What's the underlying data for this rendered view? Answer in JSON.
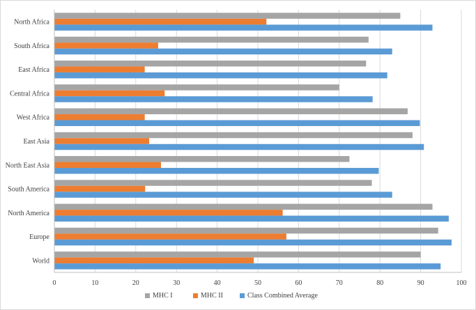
{
  "chart_data": {
    "type": "bar",
    "orientation": "horizontal",
    "categories": [
      "World",
      "Europe",
      "North America",
      "South America",
      "North East Asia",
      "East Asia",
      "West Africa",
      "Central Africa",
      "East Africa",
      "South Africa",
      "North Africa"
    ],
    "series": [
      {
        "name": "MHC I",
        "color": "#a5a5a5",
        "values": [
          90,
          94.3,
          92.9,
          78,
          72.5,
          88,
          86.8,
          70,
          76.6,
          77.2,
          85
        ]
      },
      {
        "name": "MHC II",
        "color": "#ed7d31",
        "values": [
          49,
          57,
          56.1,
          22.3,
          26.2,
          23.3,
          22.2,
          27.1,
          22.2,
          25.5,
          52.1
        ]
      },
      {
        "name": "Class Combined Average",
        "color": "#5b9bd5",
        "values": [
          94.9,
          97.6,
          96.9,
          83,
          79.7,
          90.8,
          89.8,
          78.2,
          81.8,
          83,
          92.9
        ]
      }
    ],
    "xlim": [
      0,
      100
    ],
    "xticks": [
      0,
      10,
      20,
      30,
      40,
      50,
      60,
      70,
      80,
      90,
      100
    ],
    "grid": "vertical",
    "legend_position": "bottom",
    "title": "",
    "xlabel": "",
    "ylabel": ""
  }
}
